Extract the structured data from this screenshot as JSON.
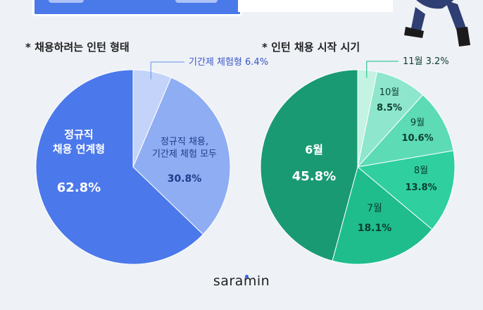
{
  "header": {
    "left_heading": "* 채용하려는 인턴 형태",
    "right_heading": "* 인턴 채용 시작 시기"
  },
  "logo": "saramin",
  "colors": {
    "background": "#eef1f6",
    "title_blue": "#4a79ea",
    "leader_line": "#7fa6ee"
  },
  "chart_data": [
    {
      "type": "pie",
      "title": "* 채용하려는 인턴 형태",
      "slices": [
        {
          "name": "정규직 채용 연계형",
          "label_lines": [
            "정규직",
            "채용 연계형"
          ],
          "value": 62.8,
          "value_label": "62.8%",
          "color": "#4b78ea",
          "label_color": "#ffffff"
        },
        {
          "name": "정규직 채용, 기간제 체험 모두",
          "label_lines": [
            "정규직 채용,",
            "기간제 체험 모두"
          ],
          "value": 30.8,
          "value_label": "30.8%",
          "color": "#8fadf3",
          "label_color": "#1f3a8a"
        },
        {
          "name": "기간제 체험형",
          "label_lines": [
            "기간제 체험형"
          ],
          "value": 6.4,
          "value_label": "6.4%",
          "color": "#c3d3f9",
          "label_color": "#3a55c8"
        }
      ],
      "start_angle_deg": 0,
      "direction": "counterclockwise-from-top-right"
    },
    {
      "type": "pie",
      "title": "* 인턴 채용 시작 시기",
      "slices": [
        {
          "name": "6월",
          "label_lines": [
            "6월"
          ],
          "value": 45.8,
          "value_label": "45.8%",
          "color": "#1a9a73",
          "label_color": "#ffffff"
        },
        {
          "name": "7월",
          "label_lines": [
            "7월"
          ],
          "value": 18.1,
          "value_label": "18.1%",
          "color": "#1fbd8c",
          "label_color": "#0c3d2e"
        },
        {
          "name": "8월",
          "label_lines": [
            "8월"
          ],
          "value": 13.8,
          "value_label": "13.8%",
          "color": "#2fcfa0",
          "label_color": "#0c3d2e"
        },
        {
          "name": "9월",
          "label_lines": [
            "9월"
          ],
          "value": 10.6,
          "value_label": "10.6%",
          "color": "#5cdbb5",
          "label_color": "#0c3d2e"
        },
        {
          "name": "10월",
          "label_lines": [
            "10월"
          ],
          "value": 8.5,
          "value_label": "8.5%",
          "color": "#8ee6cc",
          "label_color": "#0c3d2e"
        },
        {
          "name": "11월",
          "label_lines": [
            "11월"
          ],
          "value": 3.2,
          "value_label": "3.2%",
          "color": "#c4f2e3",
          "label_color": "#0c3d2e"
        }
      ]
    }
  ]
}
